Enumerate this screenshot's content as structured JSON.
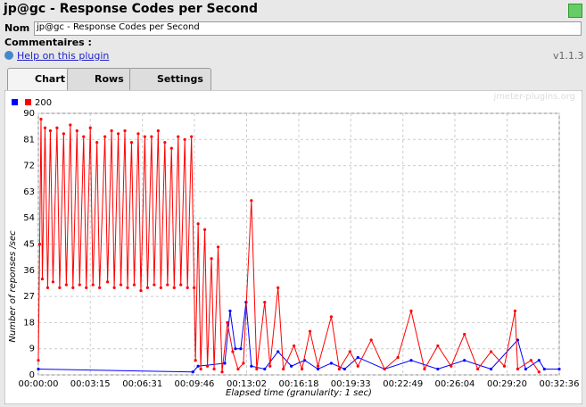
{
  "header": {
    "title": "jp@gc - Response Codes per Second",
    "name_label": "Nom :",
    "name_value": "jp@gc - Response Codes per Second",
    "comments_label": "Commentaires :",
    "help_link": "Help on this plugin",
    "version": "v1.1.3"
  },
  "tabs": [
    "Chart",
    "Rows",
    "Settings"
  ],
  "watermark": "jmeter-plugins.org",
  "chart_data": {
    "type": "line",
    "x_label": "Elapsed time (granularity: 1 sec)",
    "y_label": "Number of reponses /sec",
    "grid": true,
    "legend": "top-left",
    "xlim": [
      0,
      1956
    ],
    "ylim": [
      0,
      90
    ],
    "xticks": [
      {
        "value": 0,
        "label": "00:00:00"
      },
      {
        "value": 195,
        "label": "00:03:15"
      },
      {
        "value": 391,
        "label": "00:06:31"
      },
      {
        "value": 586,
        "label": "00:09:46"
      },
      {
        "value": 782,
        "label": "00:13:02"
      },
      {
        "value": 978,
        "label": "00:16:18"
      },
      {
        "value": 1173,
        "label": "00:19:33"
      },
      {
        "value": 1369,
        "label": "00:22:49"
      },
      {
        "value": 1564,
        "label": "00:26:04"
      },
      {
        "value": 1760,
        "label": "00:29:20"
      },
      {
        "value": 1956,
        "label": "00:32:36"
      }
    ],
    "yticks": [
      0,
      9,
      18,
      27,
      36,
      45,
      54,
      63,
      72,
      81,
      90
    ],
    "series": [
      {
        "color": "#0000ff",
        "x": [
          0,
          580,
          600,
          700,
          720,
          740,
          760,
          780,
          800,
          850,
          900,
          950,
          1000,
          1050,
          1100,
          1150,
          1200,
          1300,
          1400,
          1500,
          1600,
          1700,
          1800,
          1830,
          1880,
          1900,
          1956
        ],
        "values": [
          2,
          1,
          3,
          4,
          22,
          9,
          9,
          25,
          3,
          2,
          8,
          3,
          5,
          2,
          4,
          2,
          6,
          2,
          5,
          2,
          5,
          2,
          12,
          2,
          5,
          2,
          2
        ]
      },
      {
        "name": "200",
        "color": "#ff0000",
        "x": [
          0,
          5,
          10,
          15,
          25,
          35,
          45,
          55,
          70,
          80,
          95,
          105,
          120,
          130,
          145,
          155,
          170,
          180,
          195,
          205,
          220,
          230,
          250,
          260,
          275,
          285,
          300,
          310,
          325,
          335,
          350,
          360,
          375,
          385,
          400,
          410,
          425,
          435,
          450,
          460,
          475,
          485,
          500,
          510,
          525,
          535,
          550,
          560,
          575,
          585,
          590,
          600,
          610,
          625,
          635,
          650,
          660,
          675,
          690,
          710,
          730,
          750,
          770,
          800,
          820,
          850,
          870,
          900,
          920,
          960,
          990,
          1020,
          1050,
          1100,
          1130,
          1170,
          1200,
          1250,
          1300,
          1350,
          1400,
          1450,
          1500,
          1550,
          1600,
          1650,
          1700,
          1750,
          1790,
          1800,
          1850,
          1880
        ],
        "values": [
          5,
          45,
          88,
          33,
          85,
          30,
          84,
          32,
          85,
          30,
          83,
          31,
          86,
          30,
          84,
          31,
          82,
          30,
          85,
          31,
          80,
          30,
          82,
          32,
          84,
          30,
          83,
          31,
          84,
          30,
          80,
          31,
          83,
          29,
          82,
          30,
          82,
          31,
          84,
          30,
          80,
          31,
          78,
          30,
          82,
          31,
          81,
          30,
          82,
          30,
          5,
          52,
          2,
          50,
          3,
          40,
          2,
          44,
          1,
          18,
          8,
          2,
          4,
          60,
          2,
          25,
          3,
          30,
          2,
          10,
          2,
          15,
          3,
          20,
          2,
          8,
          3,
          12,
          2,
          6,
          22,
          2,
          10,
          3,
          14,
          2,
          8,
          3,
          22,
          2,
          5,
          1
        ]
      }
    ]
  }
}
